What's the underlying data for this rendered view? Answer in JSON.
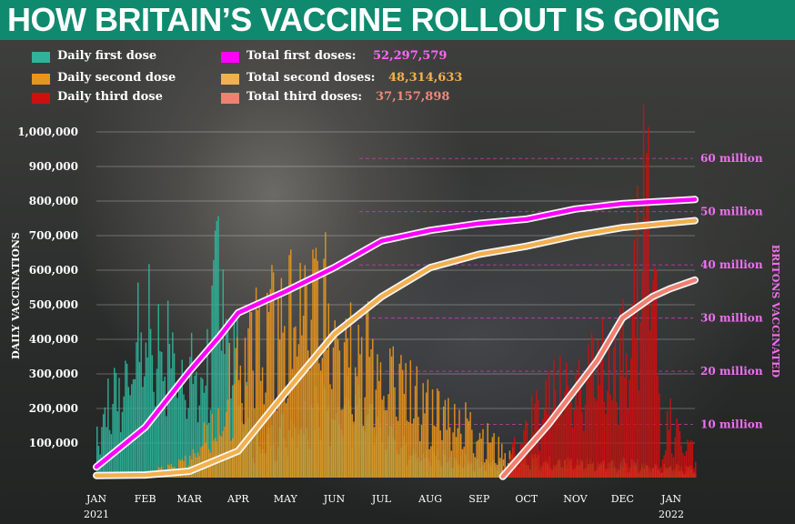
{
  "header": {
    "title": "HOW BRITAIN’S VACCINE ROLLOUT IS GOING"
  },
  "legend": {
    "items": [
      {
        "label": "Daily first dose",
        "color": "#2fb39a"
      },
      {
        "label": "Daily second dose",
        "color": "#e8951e"
      },
      {
        "label": "Daily third dose",
        "color": "#cc1010"
      }
    ],
    "totals": [
      {
        "label": "Total first doses:",
        "value": "52,297,579",
        "color": "#ff00ff"
      },
      {
        "label": "Total second doses:",
        "value": "48,314,633",
        "color": "#f2b050"
      },
      {
        "label": "Total third doses:",
        "value": "37,157,898",
        "color": "#f08070"
      }
    ]
  },
  "chart_data": {
    "type": "bar",
    "ylabel": "DAILY VACCINATIONS",
    "y2label": "BRITONS VACCINATED",
    "ylim": [
      0,
      1000000
    ],
    "y2lim": [
      0,
      65000000
    ],
    "y_ticks": [
      "100,000",
      "200,000",
      "300,000",
      "400,000",
      "500,000",
      "600,000",
      "700,000",
      "800,000",
      "900,000",
      "1,000,000"
    ],
    "y_tick_values": [
      100000,
      200000,
      300000,
      400000,
      500000,
      600000,
      700000,
      800000,
      900000,
      1000000
    ],
    "y2_ticks": [
      "10 million",
      "20 million",
      "30 million",
      "40 million",
      "50 million",
      "60 million"
    ],
    "y2_tick_values": [
      10000000,
      20000000,
      30000000,
      40000000,
      50000000,
      60000000
    ],
    "x_ticks": [
      "JAN",
      "FEB",
      "MAR",
      "APR",
      "MAY",
      "JUN",
      "JUL",
      "AUG",
      "SEP",
      "OCT",
      "NOV",
      "DEC",
      "JAN"
    ],
    "x_tick_dates": [
      "2021-01-01",
      "2021-02-01",
      "2021-03-01",
      "2021-04-01",
      "2021-05-01",
      "2021-06-01",
      "2021-07-01",
      "2021-08-01",
      "2021-09-01",
      "2021-10-01",
      "2021-11-01",
      "2021-12-01",
      "2022-01-01"
    ],
    "x_year_labels": [
      "2021",
      "2022"
    ],
    "x_range": [
      "2021-01-01",
      "2022-01-16"
    ],
    "bar_series": [
      {
        "name": "Daily first dose",
        "color": "#2fb39a",
        "points": [
          [
            "2021-01-01",
            170000
          ],
          [
            "2021-01-10",
            280000
          ],
          [
            "2021-01-20",
            380000
          ],
          [
            "2021-01-31",
            540000
          ],
          [
            "2021-02-10",
            470000
          ],
          [
            "2021-02-20",
            440000
          ],
          [
            "2021-03-01",
            360000
          ],
          [
            "2021-03-10",
            340000
          ],
          [
            "2021-03-20",
            720000
          ],
          [
            "2021-03-31",
            400000
          ],
          [
            "2021-04-10",
            120000
          ],
          [
            "2021-04-20",
            130000
          ],
          [
            "2021-05-01",
            180000
          ],
          [
            "2021-05-15",
            240000
          ],
          [
            "2021-06-01",
            280000
          ],
          [
            "2021-06-15",
            240000
          ],
          [
            "2021-07-01",
            170000
          ],
          [
            "2021-07-15",
            100000
          ],
          [
            "2021-08-01",
            80000
          ],
          [
            "2021-09-01",
            50000
          ],
          [
            "2021-10-01",
            40000
          ],
          [
            "2021-11-01",
            45000
          ],
          [
            "2021-12-01",
            50000
          ],
          [
            "2021-12-20",
            40000
          ],
          [
            "2022-01-16",
            20000
          ]
        ]
      },
      {
        "name": "Daily second dose",
        "color": "#e8951e",
        "points": [
          [
            "2021-01-01",
            10000
          ],
          [
            "2021-02-01",
            15000
          ],
          [
            "2021-02-20",
            40000
          ],
          [
            "2021-03-01",
            80000
          ],
          [
            "2021-03-20",
            200000
          ],
          [
            "2021-04-01",
            450000
          ],
          [
            "2021-04-15",
            500000
          ],
          [
            "2021-05-01",
            550000
          ],
          [
            "2021-05-15",
            620000
          ],
          [
            "2021-06-01",
            580000
          ],
          [
            "2021-06-15",
            480000
          ],
          [
            "2021-07-01",
            380000
          ],
          [
            "2021-07-15",
            300000
          ],
          [
            "2021-08-01",
            240000
          ],
          [
            "2021-08-15",
            220000
          ],
          [
            "2021-09-01",
            160000
          ],
          [
            "2021-09-15",
            90000
          ],
          [
            "2021-10-01",
            60000
          ],
          [
            "2021-11-01",
            50000
          ],
          [
            "2021-12-01",
            40000
          ],
          [
            "2022-01-16",
            30000
          ]
        ]
      },
      {
        "name": "Daily third dose",
        "color": "#cc1010",
        "points": [
          [
            "2021-09-15",
            20000
          ],
          [
            "2021-10-01",
            180000
          ],
          [
            "2021-10-15",
            300000
          ],
          [
            "2021-11-01",
            320000
          ],
          [
            "2021-11-15",
            380000
          ],
          [
            "2021-11-30",
            420000
          ],
          [
            "2021-12-10",
            750000
          ],
          [
            "2021-12-15",
            950000
          ],
          [
            "2021-12-20",
            800000
          ],
          [
            "2021-12-25",
            60000
          ],
          [
            "2021-12-31",
            220000
          ],
          [
            "2022-01-07",
            120000
          ],
          [
            "2022-01-16",
            80000
          ]
        ]
      }
    ],
    "line_series": [
      {
        "name": "Total first doses",
        "color": "#ff00ff",
        "points": [
          [
            "2021-01-01",
            2000000
          ],
          [
            "2021-02-01",
            9500000
          ],
          [
            "2021-03-01",
            20000000
          ],
          [
            "2021-03-20",
            26500000
          ],
          [
            "2021-04-01",
            31000000
          ],
          [
            "2021-05-01",
            35000000
          ],
          [
            "2021-06-01",
            39500000
          ],
          [
            "2021-07-01",
            44500000
          ],
          [
            "2021-08-01",
            46500000
          ],
          [
            "2021-09-01",
            47800000
          ],
          [
            "2021-10-01",
            48600000
          ],
          [
            "2021-11-01",
            50500000
          ],
          [
            "2021-12-01",
            51500000
          ],
          [
            "2022-01-16",
            52297579
          ]
        ]
      },
      {
        "name": "Total second doses",
        "color": "#f2b050",
        "points": [
          [
            "2021-01-01",
            400000
          ],
          [
            "2021-02-01",
            500000
          ],
          [
            "2021-03-01",
            1200000
          ],
          [
            "2021-04-01",
            5000000
          ],
          [
            "2021-05-01",
            16000000
          ],
          [
            "2021-06-01",
            27000000
          ],
          [
            "2021-07-01",
            34000000
          ],
          [
            "2021-08-01",
            39500000
          ],
          [
            "2021-09-01",
            42000000
          ],
          [
            "2021-10-01",
            43500000
          ],
          [
            "2021-11-01",
            45500000
          ],
          [
            "2021-12-01",
            47000000
          ],
          [
            "2022-01-16",
            48314633
          ]
        ]
      },
      {
        "name": "Total third doses",
        "color": "#f08070",
        "points": [
          [
            "2021-09-16",
            200000
          ],
          [
            "2021-10-15",
            10000000
          ],
          [
            "2021-11-15",
            22000000
          ],
          [
            "2021-12-01",
            30000000
          ],
          [
            "2021-12-20",
            34000000
          ],
          [
            "2021-12-31",
            35500000
          ],
          [
            "2022-01-16",
            37157898
          ]
        ]
      }
    ],
    "grid": true,
    "legend_position": "top-left"
  }
}
